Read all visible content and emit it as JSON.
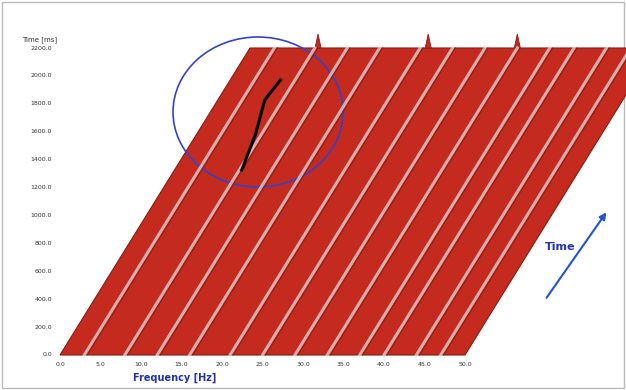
{
  "chart_data": {
    "type": "waterfall",
    "x_label": "Frequency [Hz]",
    "y_label": "Time [ms]",
    "annotations": [
      "Time"
    ],
    "color": "#c42a1e",
    "xlim": [
      0,
      50
    ],
    "xticks": [
      {
        "value": 0,
        "label": "0.0"
      },
      {
        "value": 5,
        "label": "5.0"
      },
      {
        "value": 10,
        "label": "10.0"
      },
      {
        "value": 15,
        "label": "15.0"
      },
      {
        "value": 20,
        "label": "20.0"
      },
      {
        "value": 25,
        "label": "25.0"
      },
      {
        "value": 30,
        "label": "30.0"
      },
      {
        "value": 35,
        "label": "35.0"
      },
      {
        "value": 40,
        "label": "40.0"
      },
      {
        "value": 45,
        "label": "45.0"
      },
      {
        "value": 50,
        "label": "50.0"
      }
    ],
    "ylim": [
      0,
      2200
    ],
    "yticks": [
      {
        "value": 0,
        "label": "0.0"
      },
      {
        "value": 200,
        "label": "200.0"
      },
      {
        "value": 400,
        "label": "400.0"
      },
      {
        "value": 600,
        "label": "600.0"
      },
      {
        "value": 800,
        "label": "800.0"
      },
      {
        "value": 1000,
        "label": "1000.0"
      },
      {
        "value": 1200,
        "label": "1200.0"
      },
      {
        "value": 1400,
        "label": "1400.0"
      },
      {
        "value": 1600,
        "label": "1600.0"
      },
      {
        "value": 1800,
        "label": "1800.0"
      },
      {
        "value": 2000,
        "label": "2000.0"
      },
      {
        "value": 2200,
        "label": "2200.0"
      }
    ],
    "ridges": [
      3,
      8,
      12,
      16,
      21,
      25,
      29,
      33,
      37,
      40,
      44,
      47
    ],
    "peaks": [
      8.4,
      22,
      33
    ],
    "highlight": {
      "x": [
        8.3,
        7.3,
        5.8,
        6.2
      ],
      "y": [
        1326,
        1576,
        1827,
        1971
      ]
    }
  }
}
